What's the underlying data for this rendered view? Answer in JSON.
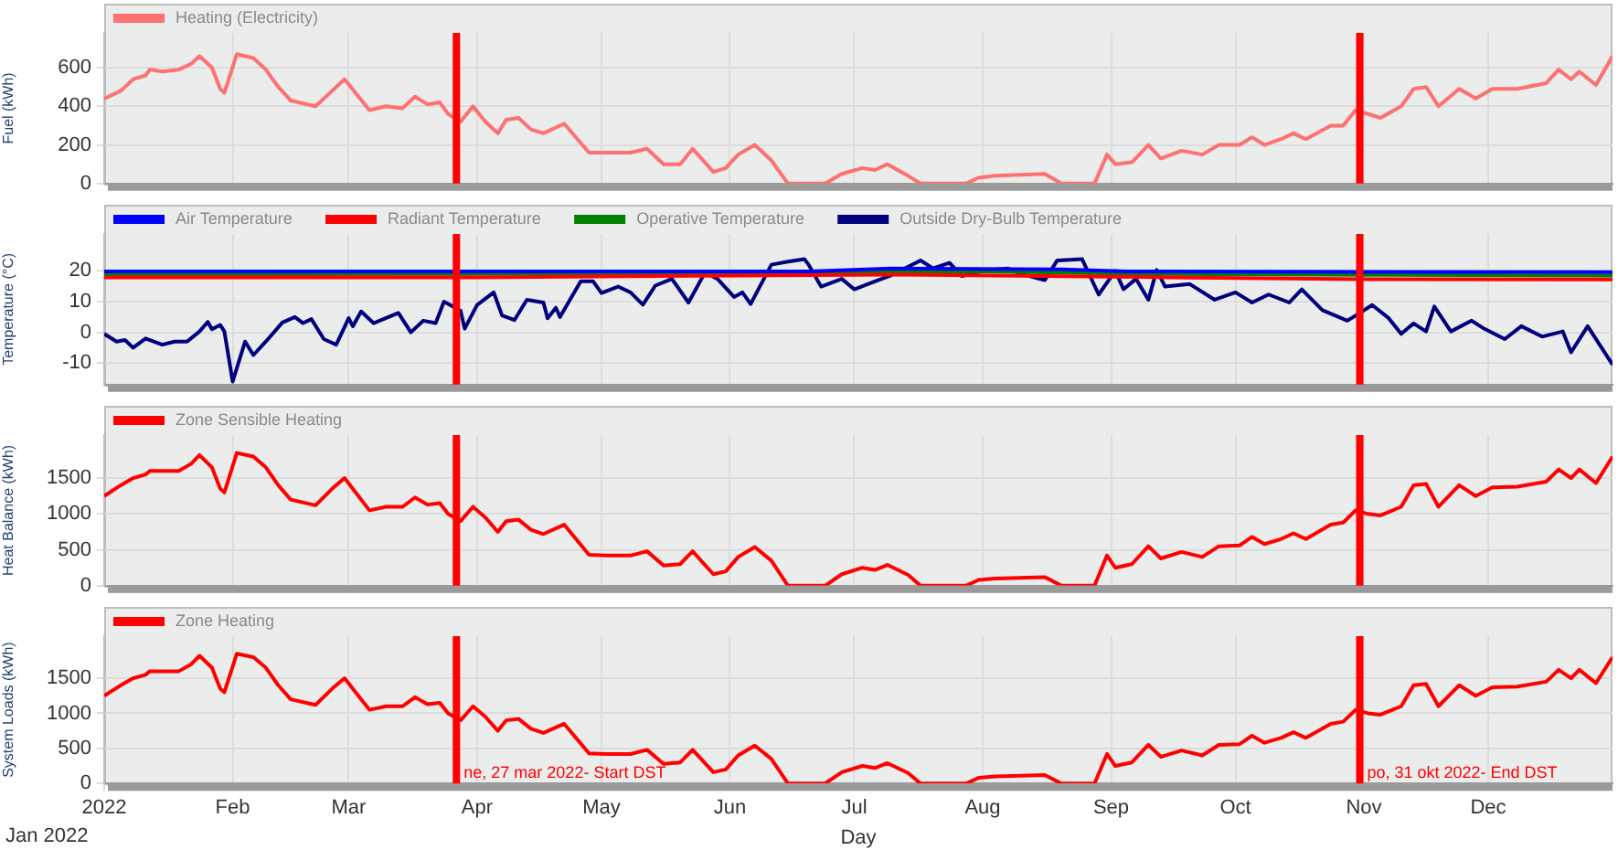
{
  "chart_data": [
    {
      "type": "line",
      "ylabel": "Fuel (kWh)",
      "legend": "top left",
      "grid": true,
      "tick_labels": "y",
      "xlim": [
        "2022-01-01",
        "2022-12-31"
      ],
      "xticks": [
        {
          "value": "2022-01-01",
          "label": null
        },
        {
          "value": "2022-02-01",
          "label": null
        },
        {
          "value": "2022-03-01",
          "label": null
        },
        {
          "value": "2022-04-01",
          "label": null
        },
        {
          "value": "2022-05-01",
          "label": null
        },
        {
          "value": "2022-06-01",
          "label": null
        },
        {
          "value": "2022-07-01",
          "label": null
        },
        {
          "value": "2022-08-01",
          "label": null
        },
        {
          "value": "2022-09-01",
          "label": null
        },
        {
          "value": "2022-10-01",
          "label": null
        },
        {
          "value": "2022-11-01",
          "label": null
        },
        {
          "value": "2022-12-01",
          "label": null
        }
      ],
      "ylim": [
        0,
        780
      ],
      "yticks": [
        0,
        200,
        400,
        600
      ],
      "ref_lines": [
        {
          "axis": "x",
          "value": "2022-03-27",
          "color": "#ff0000"
        },
        {
          "axis": "x",
          "value": "2022-10-31",
          "color": "#ff0000"
        }
      ],
      "x": [
        "2022-01-01",
        "2022-01-05",
        "2022-01-08",
        "2022-01-11",
        "2022-01-12",
        "2022-01-15",
        "2022-01-19",
        "2022-01-22",
        "2022-01-24",
        "2022-01-27",
        "2022-01-29",
        "2022-01-30",
        "2022-02-02",
        "2022-02-06",
        "2022-02-09",
        "2022-02-12",
        "2022-02-15",
        "2022-02-21",
        "2022-02-25",
        "2022-02-28",
        "2022-03-06",
        "2022-03-10",
        "2022-03-14",
        "2022-03-17",
        "2022-03-20",
        "2022-03-23",
        "2022-03-25",
        "2022-03-28",
        "2022-03-31",
        "2022-04-03",
        "2022-04-06",
        "2022-04-08",
        "2022-04-11",
        "2022-04-14",
        "2022-04-17",
        "2022-04-22",
        "2022-04-28",
        "2022-05-02",
        "2022-05-08",
        "2022-05-12",
        "2022-05-16",
        "2022-05-20",
        "2022-05-23",
        "2022-05-28",
        "2022-05-31",
        "2022-06-03",
        "2022-06-07",
        "2022-06-11",
        "2022-06-15",
        "2022-06-24",
        "2022-06-28",
        "2022-07-03",
        "2022-07-06",
        "2022-07-09",
        "2022-07-14",
        "2022-07-17",
        "2022-07-28",
        "2022-07-31",
        "2022-08-04",
        "2022-08-16",
        "2022-08-20",
        "2022-08-28",
        "2022-08-31",
        "2022-09-02",
        "2022-09-06",
        "2022-09-10",
        "2022-09-13",
        "2022-09-18",
        "2022-09-23",
        "2022-09-27",
        "2022-10-02",
        "2022-10-05",
        "2022-10-08",
        "2022-10-12",
        "2022-10-15",
        "2022-10-18",
        "2022-10-24",
        "2022-10-27",
        "2022-10-30",
        "2022-11-02",
        "2022-11-05",
        "2022-11-10",
        "2022-11-13",
        "2022-11-16",
        "2022-11-19",
        "2022-11-24",
        "2022-11-28",
        "2022-12-02",
        "2022-12-08",
        "2022-12-15",
        "2022-12-18",
        "2022-12-21",
        "2022-12-23",
        "2022-12-27",
        "2022-12-31"
      ],
      "series": [
        {
          "name": "Heating (Electricity)",
          "color": "#ff7070",
          "values": [
            440,
            480,
            540,
            560,
            590,
            580,
            590,
            620,
            660,
            600,
            490,
            470,
            670,
            650,
            590,
            500,
            430,
            400,
            480,
            540,
            380,
            400,
            390,
            450,
            410,
            420,
            360,
            320,
            400,
            320,
            260,
            330,
            340,
            280,
            260,
            310,
            160,
            160,
            160,
            180,
            100,
            100,
            180,
            60,
            80,
            150,
            200,
            120,
            0,
            0,
            50,
            80,
            70,
            100,
            40,
            0,
            0,
            30,
            40,
            50,
            0,
            0,
            150,
            100,
            110,
            200,
            130,
            170,
            150,
            200,
            200,
            240,
            200,
            230,
            260,
            230,
            300,
            300,
            380,
            360,
            340,
            400,
            490,
            500,
            400,
            490,
            440,
            490,
            490,
            520,
            590,
            540,
            580,
            510,
            660
          ]
        }
      ]
    },
    {
      "type": "line",
      "ylabel": "Temperature (°C)",
      "legend": "top left",
      "grid": true,
      "tick_labels": "y",
      "xlim": [
        "2022-01-01",
        "2022-12-31"
      ],
      "xticks": [
        {
          "value": "2022-01-01",
          "label": null
        },
        {
          "value": "2022-02-01",
          "label": null
        },
        {
          "value": "2022-03-01",
          "label": null
        },
        {
          "value": "2022-04-01",
          "label": null
        },
        {
          "value": "2022-05-01",
          "label": null
        },
        {
          "value": "2022-06-01",
          "label": null
        },
        {
          "value": "2022-07-01",
          "label": null
        },
        {
          "value": "2022-08-01",
          "label": null
        },
        {
          "value": "2022-09-01",
          "label": null
        },
        {
          "value": "2022-10-01",
          "label": null
        },
        {
          "value": "2022-11-01",
          "label": null
        },
        {
          "value": "2022-12-01",
          "label": null
        }
      ],
      "ylim": [
        -17,
        32
      ],
      "yticks": [
        -10,
        0,
        10,
        20
      ],
      "ref_lines": [
        {
          "axis": "x",
          "value": "2022-03-27",
          "color": "#ff0000"
        },
        {
          "axis": "x",
          "value": "2022-10-31",
          "color": "#ff0000"
        }
      ],
      "series": [
        {
          "name": "Air Temperature",
          "color": "#0000ff",
          "x": [
            "2022-01-01",
            "2022-06-20",
            "2022-07-10",
            "2022-08-20",
            "2022-09-05",
            "2022-12-31"
          ],
          "values": [
            19.8,
            19.8,
            20.8,
            20.5,
            19.8,
            19.6
          ]
        },
        {
          "name": "Radiant Temperature",
          "color": "#ff0000",
          "x": [
            "2022-01-01",
            "2022-04-01",
            "2022-05-15",
            "2022-07-10",
            "2022-08-15",
            "2022-09-15",
            "2022-11-01",
            "2022-12-31"
          ],
          "values": [
            17.9,
            17.9,
            18.3,
            18.8,
            18.3,
            17.9,
            17.3,
            17.2
          ]
        },
        {
          "name": "Operative Temperature",
          "color": "#008000",
          "x": [
            "2022-01-01",
            "2022-04-01",
            "2022-05-15",
            "2022-07-01",
            "2022-08-01",
            "2022-09-10",
            "2022-11-01",
            "2022-12-31"
          ],
          "values": [
            18.9,
            19,
            19.2,
            19.8,
            19.8,
            19,
            18.7,
            18.5
          ]
        },
        {
          "name": "Outside Dry-Bulb Temperature",
          "color": "#00007f",
          "x": [
            "2022-01-01",
            "2022-01-04",
            "2022-01-06",
            "2022-01-08",
            "2022-01-11",
            "2022-01-15",
            "2022-01-18",
            "2022-01-21",
            "2022-01-24",
            "2022-01-26",
            "2022-01-27",
            "2022-01-29",
            "2022-01-30",
            "2022-02-01",
            "2022-02-04",
            "2022-02-06",
            "2022-02-09",
            "2022-02-13",
            "2022-02-16",
            "2022-02-18",
            "2022-02-20",
            "2022-02-23",
            "2022-02-26",
            "2022-03-01",
            "2022-03-02",
            "2022-03-04",
            "2022-03-07",
            "2022-03-13",
            "2022-03-16",
            "2022-03-19",
            "2022-03-22",
            "2022-03-24",
            "2022-03-28",
            "2022-03-29",
            "2022-04-01",
            "2022-04-05",
            "2022-04-07",
            "2022-04-10",
            "2022-04-13",
            "2022-04-17",
            "2022-04-18",
            "2022-04-20",
            "2022-04-21",
            "2022-04-26",
            "2022-04-29",
            "2022-05-01",
            "2022-05-05",
            "2022-05-08",
            "2022-05-11",
            "2022-05-14",
            "2022-05-18",
            "2022-05-22",
            "2022-05-26",
            "2022-05-29",
            "2022-06-02",
            "2022-06-04",
            "2022-06-06",
            "2022-06-11",
            "2022-06-15",
            "2022-06-19",
            "2022-06-20",
            "2022-06-23",
            "2022-06-28",
            "2022-07-01",
            "2022-07-06",
            "2022-07-10",
            "2022-07-17",
            "2022-07-20",
            "2022-07-24",
            "2022-07-27",
            "2022-08-01",
            "2022-08-07",
            "2022-08-10",
            "2022-08-16",
            "2022-08-19",
            "2022-08-25",
            "2022-08-29",
            "2022-09-02",
            "2022-09-04",
            "2022-09-07",
            "2022-09-10",
            "2022-09-12",
            "2022-09-14",
            "2022-09-20",
            "2022-09-26",
            "2022-10-01",
            "2022-10-05",
            "2022-10-09",
            "2022-10-14",
            "2022-10-17",
            "2022-10-22",
            "2022-10-28",
            "2022-10-31",
            "2022-11-03",
            "2022-11-07",
            "2022-11-10",
            "2022-11-13",
            "2022-11-16",
            "2022-11-18",
            "2022-11-22",
            "2022-11-27",
            "2022-11-30",
            "2022-12-05",
            "2022-12-09",
            "2022-12-14",
            "2022-12-19",
            "2022-12-21",
            "2022-12-25",
            "2022-12-31"
          ],
          "values": [
            -0.5,
            -3,
            -2.5,
            -5,
            -2,
            -4,
            -3,
            -3,
            0.3,
            3.4,
            1,
            2.4,
            0.3,
            -16,
            -3,
            -7.4,
            -3,
            3.2,
            5,
            3,
            4.3,
            -2.2,
            -4,
            4.6,
            2,
            6.8,
            3,
            6.3,
            0,
            3.8,
            3,
            10,
            7,
            1.2,
            8.9,
            13,
            5.5,
            4,
            10.6,
            9.7,
            4.6,
            8,
            5,
            16.6,
            16.6,
            12.8,
            14.9,
            13,
            9,
            15.2,
            17.4,
            9.7,
            19.5,
            17.4,
            11.5,
            13,
            9.2,
            22,
            23,
            23.8,
            22,
            14.9,
            17.4,
            14,
            16.6,
            18.6,
            23.4,
            20.8,
            22.6,
            18.3,
            20,
            20.8,
            19.1,
            17,
            23.4,
            23.8,
            12.3,
            20,
            14,
            17.4,
            10.6,
            20.3,
            14.9,
            15.7,
            10.6,
            13,
            9.7,
            12.3,
            9.7,
            14,
            7.2,
            3.8,
            6.3,
            8.9,
            4.6,
            -0.5,
            2.9,
            0.3,
            8.4,
            0.3,
            3.8,
            1.2,
            -2.2,
            2,
            -1.4,
            0.3,
            -6.5,
            2,
            -10.5
          ]
        }
      ]
    },
    {
      "type": "line",
      "ylabel": "Heat Balance (kWh)",
      "legend": "top left",
      "grid": true,
      "tick_labels": "y",
      "xlim": [
        "2022-01-01",
        "2022-12-31"
      ],
      "xticks": [
        {
          "value": "2022-01-01",
          "label": null
        },
        {
          "value": "2022-02-01",
          "label": null
        },
        {
          "value": "2022-03-01",
          "label": null
        },
        {
          "value": "2022-04-01",
          "label": null
        },
        {
          "value": "2022-05-01",
          "label": null
        },
        {
          "value": "2022-06-01",
          "label": null
        },
        {
          "value": "2022-07-01",
          "label": null
        },
        {
          "value": "2022-08-01",
          "label": null
        },
        {
          "value": "2022-09-01",
          "label": null
        },
        {
          "value": "2022-10-01",
          "label": null
        },
        {
          "value": "2022-11-01",
          "label": null
        },
        {
          "value": "2022-12-01",
          "label": null
        }
      ],
      "ylim": [
        0,
        2100
      ],
      "yticks": [
        0,
        500,
        1000,
        1500
      ],
      "ref_lines": [
        {
          "axis": "x",
          "value": "2022-03-27",
          "color": "#ff0000"
        },
        {
          "axis": "x",
          "value": "2022-10-31",
          "color": "#ff0000"
        }
      ],
      "x": [
        "2022-01-01",
        "2022-01-05",
        "2022-01-08",
        "2022-01-11",
        "2022-01-12",
        "2022-01-15",
        "2022-01-19",
        "2022-01-22",
        "2022-01-24",
        "2022-01-27",
        "2022-01-29",
        "2022-01-30",
        "2022-02-02",
        "2022-02-06",
        "2022-02-09",
        "2022-02-12",
        "2022-02-15",
        "2022-02-21",
        "2022-02-25",
        "2022-02-28",
        "2022-03-06",
        "2022-03-10",
        "2022-03-14",
        "2022-03-17",
        "2022-03-20",
        "2022-03-23",
        "2022-03-25",
        "2022-03-28",
        "2022-03-31",
        "2022-04-03",
        "2022-04-06",
        "2022-04-08",
        "2022-04-11",
        "2022-04-14",
        "2022-04-17",
        "2022-04-22",
        "2022-04-28",
        "2022-05-02",
        "2022-05-08",
        "2022-05-12",
        "2022-05-16",
        "2022-05-20",
        "2022-05-23",
        "2022-05-28",
        "2022-05-31",
        "2022-06-03",
        "2022-06-07",
        "2022-06-11",
        "2022-06-15",
        "2022-06-24",
        "2022-06-28",
        "2022-07-03",
        "2022-07-06",
        "2022-07-09",
        "2022-07-14",
        "2022-07-17",
        "2022-07-28",
        "2022-07-31",
        "2022-08-04",
        "2022-08-16",
        "2022-08-20",
        "2022-08-28",
        "2022-08-31",
        "2022-09-02",
        "2022-09-06",
        "2022-09-10",
        "2022-09-13",
        "2022-09-18",
        "2022-09-23",
        "2022-09-27",
        "2022-10-02",
        "2022-10-05",
        "2022-10-08",
        "2022-10-12",
        "2022-10-15",
        "2022-10-18",
        "2022-10-24",
        "2022-10-27",
        "2022-10-30",
        "2022-11-02",
        "2022-11-05",
        "2022-11-10",
        "2022-11-13",
        "2022-11-16",
        "2022-11-19",
        "2022-11-24",
        "2022-11-28",
        "2022-12-02",
        "2022-12-08",
        "2022-12-15",
        "2022-12-18",
        "2022-12-21",
        "2022-12-23",
        "2022-12-27",
        "2022-12-31"
      ],
      "series": [
        {
          "name": "Zone Sensible Heating",
          "color": "#ff0000",
          "values": [
            1250,
            1400,
            1500,
            1550,
            1600,
            1600,
            1600,
            1700,
            1820,
            1650,
            1350,
            1300,
            1850,
            1800,
            1650,
            1400,
            1200,
            1120,
            1350,
            1500,
            1050,
            1100,
            1100,
            1230,
            1130,
            1150,
            1000,
            900,
            1100,
            950,
            750,
            900,
            920,
            780,
            720,
            850,
            430,
            420,
            420,
            480,
            280,
            300,
            480,
            160,
            200,
            400,
            540,
            350,
            0,
            0,
            160,
            250,
            220,
            290,
            150,
            0,
            0,
            80,
            100,
            120,
            0,
            0,
            420,
            250,
            300,
            550,
            380,
            470,
            400,
            550,
            560,
            680,
            580,
            650,
            730,
            650,
            850,
            880,
            1050,
            1000,
            980,
            1100,
            1400,
            1420,
            1100,
            1400,
            1250,
            1370,
            1380,
            1450,
            1620,
            1500,
            1620,
            1430,
            1800
          ]
        }
      ]
    },
    {
      "type": "line",
      "ylabel": "System Loads (kWh)",
      "xlabel": "Day",
      "legend": "top left",
      "grid": true,
      "annotations": [
        "Jan 2022"
      ],
      "xlim": [
        "2022-01-01",
        "2022-12-31"
      ],
      "xticks": [
        {
          "value": "2022-01-01",
          "label": "2022"
        },
        {
          "value": "2022-02-01",
          "label": "Feb"
        },
        {
          "value": "2022-03-01",
          "label": "Mar"
        },
        {
          "value": "2022-04-01",
          "label": "Apr"
        },
        {
          "value": "2022-05-01",
          "label": "May"
        },
        {
          "value": "2022-06-01",
          "label": "Jun"
        },
        {
          "value": "2022-07-01",
          "label": "Jul"
        },
        {
          "value": "2022-08-01",
          "label": "Aug"
        },
        {
          "value": "2022-09-01",
          "label": "Sep"
        },
        {
          "value": "2022-10-01",
          "label": "Oct"
        },
        {
          "value": "2022-11-01",
          "label": "Nov"
        },
        {
          "value": "2022-12-01",
          "label": "Dec"
        }
      ],
      "ylim": [
        0,
        2100
      ],
      "yticks": [
        0,
        500,
        1000,
        1500
      ],
      "ref_lines": [
        {
          "axis": "x",
          "value": "2022-03-27",
          "label": "ne, 27 mar 2022- Start DST",
          "color": "#ff0000"
        },
        {
          "axis": "x",
          "value": "2022-10-31",
          "label": "po, 31 okt 2022- End DST",
          "color": "#ff0000"
        }
      ],
      "x": [
        "2022-01-01",
        "2022-01-05",
        "2022-01-08",
        "2022-01-11",
        "2022-01-12",
        "2022-01-15",
        "2022-01-19",
        "2022-01-22",
        "2022-01-24",
        "2022-01-27",
        "2022-01-29",
        "2022-01-30",
        "2022-02-02",
        "2022-02-06",
        "2022-02-09",
        "2022-02-12",
        "2022-02-15",
        "2022-02-21",
        "2022-02-25",
        "2022-02-28",
        "2022-03-06",
        "2022-03-10",
        "2022-03-14",
        "2022-03-17",
        "2022-03-20",
        "2022-03-23",
        "2022-03-25",
        "2022-03-28",
        "2022-03-31",
        "2022-04-03",
        "2022-04-06",
        "2022-04-08",
        "2022-04-11",
        "2022-04-14",
        "2022-04-17",
        "2022-04-22",
        "2022-04-28",
        "2022-05-02",
        "2022-05-08",
        "2022-05-12",
        "2022-05-16",
        "2022-05-20",
        "2022-05-23",
        "2022-05-28",
        "2022-05-31",
        "2022-06-03",
        "2022-06-07",
        "2022-06-11",
        "2022-06-15",
        "2022-06-24",
        "2022-06-28",
        "2022-07-03",
        "2022-07-06",
        "2022-07-09",
        "2022-07-14",
        "2022-07-17",
        "2022-07-28",
        "2022-07-31",
        "2022-08-04",
        "2022-08-16",
        "2022-08-20",
        "2022-08-28",
        "2022-08-31",
        "2022-09-02",
        "2022-09-06",
        "2022-09-10",
        "2022-09-13",
        "2022-09-18",
        "2022-09-23",
        "2022-09-27",
        "2022-10-02",
        "2022-10-05",
        "2022-10-08",
        "2022-10-12",
        "2022-10-15",
        "2022-10-18",
        "2022-10-24",
        "2022-10-27",
        "2022-10-30",
        "2022-11-02",
        "2022-11-05",
        "2022-11-10",
        "2022-11-13",
        "2022-11-16",
        "2022-11-19",
        "2022-11-24",
        "2022-11-28",
        "2022-12-02",
        "2022-12-08",
        "2022-12-15",
        "2022-12-18",
        "2022-12-21",
        "2022-12-23",
        "2022-12-27",
        "2022-12-31"
      ],
      "series": [
        {
          "name": "Zone Heating",
          "color": "#ff0000",
          "values": [
            1250,
            1400,
            1500,
            1550,
            1600,
            1600,
            1600,
            1700,
            1820,
            1650,
            1350,
            1300,
            1850,
            1800,
            1650,
            1400,
            1200,
            1120,
            1350,
            1500,
            1050,
            1100,
            1100,
            1230,
            1130,
            1150,
            1000,
            900,
            1100,
            950,
            750,
            900,
            920,
            780,
            720,
            850,
            430,
            420,
            420,
            480,
            280,
            300,
            480,
            160,
            200,
            400,
            540,
            350,
            0,
            0,
            160,
            250,
            220,
            290,
            150,
            0,
            0,
            80,
            100,
            120,
            0,
            0,
            420,
            250,
            300,
            550,
            380,
            470,
            400,
            550,
            560,
            680,
            580,
            650,
            730,
            650,
            850,
            880,
            1050,
            1000,
            980,
            1100,
            1400,
            1420,
            1100,
            1400,
            1250,
            1370,
            1380,
            1450,
            1620,
            1500,
            1620,
            1430,
            1800
          ]
        }
      ]
    }
  ]
}
